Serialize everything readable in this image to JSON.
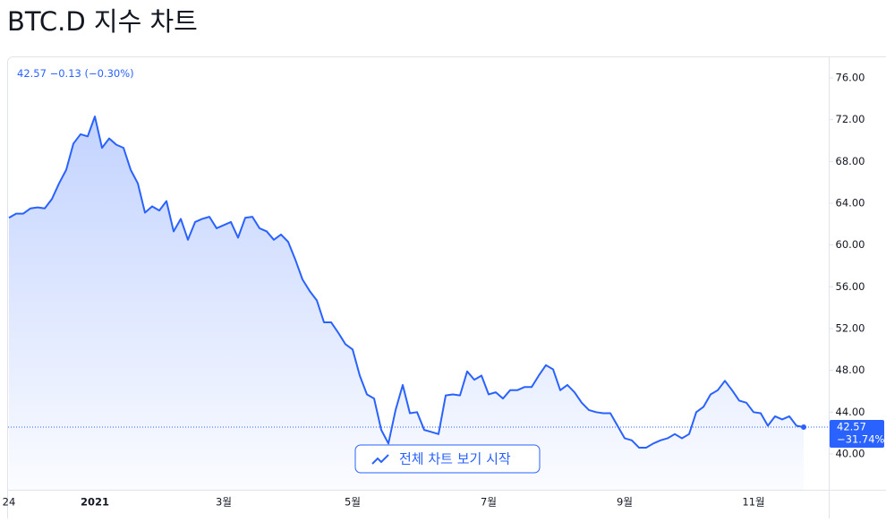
{
  "title": "BTC.D 지수 차트",
  "button": "전체 차트 보기 시작",
  "chart_data": {
    "type": "area",
    "header": {
      "change": "−0.13",
      "change_pct": "(−0.30%)"
    },
    "last_change_pct": "−31.74%",
    "categories": [
      "24",
      null,
      null,
      null,
      null,
      null,
      null,
      null,
      null,
      null,
      null,
      null,
      "2021",
      null,
      null,
      null,
      null,
      null,
      null,
      null,
      null,
      null,
      null,
      null,
      null,
      null,
      null,
      null,
      null,
      null,
      "3월",
      null,
      null,
      null,
      null,
      null,
      null,
      null,
      null,
      null,
      null,
      null,
      null,
      null,
      null,
      null,
      null,
      null,
      "5월",
      null,
      null,
      null,
      null,
      null,
      null,
      null,
      null,
      null,
      null,
      null,
      null,
      null,
      null,
      null,
      null,
      null,
      null,
      "7월",
      null,
      null,
      null,
      null,
      null,
      null,
      null,
      null,
      null,
      null,
      null,
      null,
      null,
      null,
      null,
      null,
      null,
      null,
      "9월",
      null,
      null,
      null,
      null,
      null,
      null,
      null,
      null,
      null,
      null,
      null,
      null,
      null,
      null,
      null,
      null,
      null,
      "11월",
      null,
      null,
      null,
      null,
      null,
      null,
      null
    ],
    "series": [
      {
        "color": "#2962ff",
        "values": [
          62.6,
          63.0,
          63.0,
          63.5,
          63.6,
          63.5,
          64.4,
          65.9,
          67.2,
          69.7,
          70.6,
          70.4,
          72.3,
          69.3,
          70.2,
          69.6,
          69.3,
          67.2,
          65.9,
          63.1,
          63.7,
          63.3,
          64.2,
          61.3,
          62.5,
          60.5,
          62.2,
          62.5,
          62.7,
          61.6,
          61.9,
          62.2,
          60.7,
          62.6,
          62.7,
          61.6,
          61.3,
          60.5,
          61.0,
          60.3,
          58.6,
          56.7,
          55.6,
          54.7,
          52.6,
          52.6,
          51.6,
          50.5,
          50.0,
          47.5,
          45.7,
          45.3,
          42.3,
          41.0,
          44.2,
          46.6,
          43.9,
          44.0,
          42.3,
          42.1,
          41.9,
          45.6,
          45.7,
          45.6,
          47.9,
          47.1,
          47.5,
          45.7,
          45.9,
          45.3,
          46.1,
          46.1,
          46.4,
          46.4,
          47.5,
          48.5,
          48.1,
          46.1,
          46.6,
          45.9,
          44.9,
          44.2,
          44.0,
          43.9,
          43.9,
          42.7,
          41.5,
          41.3,
          40.6,
          40.6,
          41.0,
          41.3,
          41.5,
          41.9,
          41.5,
          41.9,
          44.0,
          44.5,
          45.7,
          46.1,
          47.0,
          46.1,
          45.1,
          44.9,
          44.0,
          43.9,
          42.7,
          43.6,
          43.3,
          43.6,
          42.7,
          42.57
        ]
      }
    ],
    "ylim": [
      36.57,
      77.88
    ],
    "yticks": [
      {
        "value": 40,
        "label": "40.00"
      },
      {
        "value": 44,
        "label": "44.00"
      },
      {
        "value": 48,
        "label": "48.00"
      },
      {
        "value": 52,
        "label": "52.00"
      },
      {
        "value": 56,
        "label": "56.00"
      },
      {
        "value": 60,
        "label": "60.00"
      },
      {
        "value": 64,
        "label": "64.00"
      },
      {
        "value": 68,
        "label": "68.00"
      },
      {
        "value": 72,
        "label": "72.00"
      },
      {
        "value": 76,
        "label": "76.00"
      }
    ]
  }
}
